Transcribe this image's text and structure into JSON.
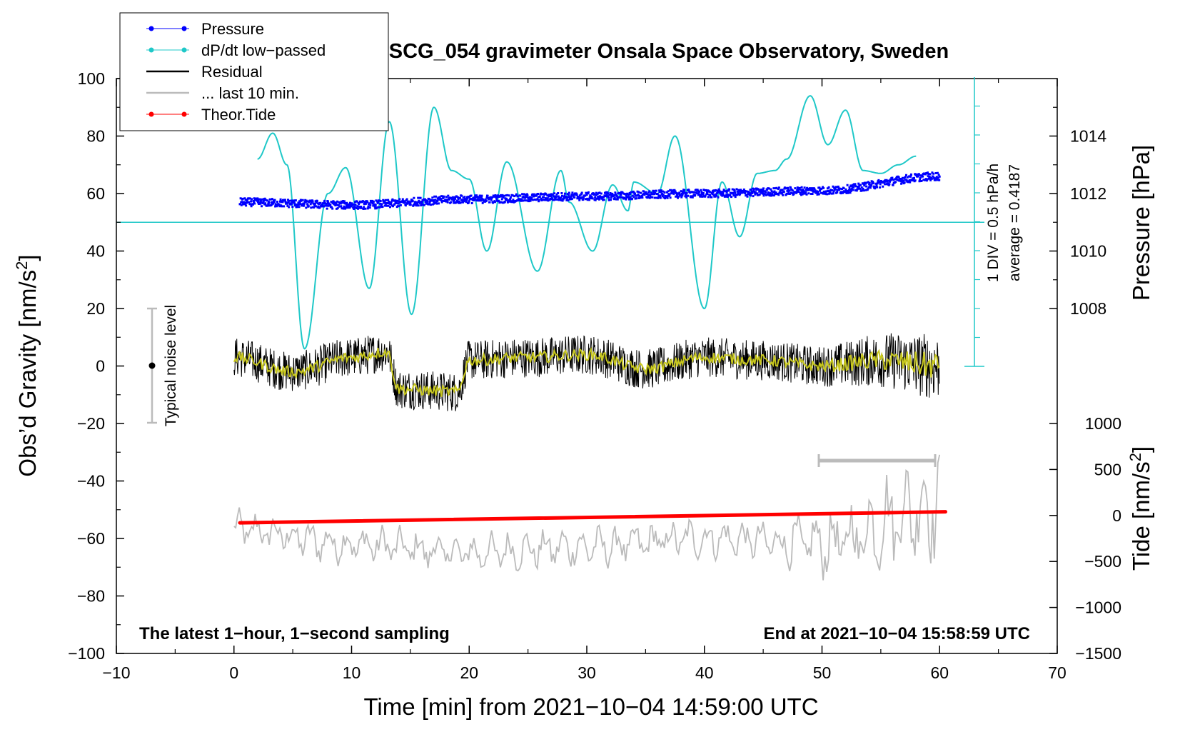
{
  "chart_data": {
    "type": "line",
    "title": "SCG_054 gravimeter Onsala Space Observatory, Sweden",
    "xlabel": "Time [min] from 2021−10−04 14:59:00 UTC",
    "ylabel_left_main": "Obs’d Gravity [nm/s",
    "ylabel_left_sup": "2",
    "ylabel_left_end": "]",
    "ylabel_right_pressure": "Pressure [hPa]",
    "ylabel_right_tide_main": "Tide [nm/s",
    "ylabel_right_tide_sup": "2",
    "ylabel_right_tide_end": "]",
    "xlim": [
      -10,
      70
    ],
    "ylim": [
      -100,
      100
    ],
    "pressure_ylim": [
      1008,
      1014
    ],
    "tide_ylim": [
      -1500,
      1000
    ],
    "x_ticks": [
      "−10",
      "0",
      "10",
      "20",
      "30",
      "40",
      "50",
      "60",
      "70"
    ],
    "y_ticks": [
      "−100",
      "−80",
      "−60",
      "−40",
      "−20",
      "0",
      "20",
      "40",
      "60",
      "80",
      "100"
    ],
    "pressure_ticks": [
      "1008",
      "1010",
      "1012",
      "1014"
    ],
    "tide_ticks": [
      "−1500",
      "−1000",
      "−500",
      "0",
      "500",
      "1000"
    ],
    "legend": [
      {
        "label": "Pressure",
        "color": "#0000ff",
        "marker": true
      },
      {
        "label": "dP/dt low−passed",
        "color": "#1fc8c8",
        "marker": true
      },
      {
        "label": "Residual",
        "color": "#000000",
        "marker": false
      },
      {
        "label": "... last 10 min.",
        "color": "#bbbbbb",
        "marker": false
      },
      {
        "label": "Theor.Tide",
        "color": "#ff0000",
        "marker": true
      }
    ],
    "annotations": {
      "bottom_left": "The latest 1−hour, 1−second sampling",
      "bottom_right": "End at 2021−10−04 15:58:59 UTC",
      "noise": "Typical noise level",
      "dpdt_scale": "1 DIV = 0.5 hPa/h",
      "dpdt_average": "average = 0.4187"
    },
    "series": [
      {
        "name": "Pressure",
        "unit": "hPa",
        "x": [
          0.5,
          10,
          20,
          30,
          40,
          50,
          60
        ],
        "y": [
          1011.7,
          1011.6,
          1011.8,
          1011.9,
          1012.0,
          1012.1,
          1012.6
        ]
      },
      {
        "name": "dP/dt low−passed",
        "unit": "nm/s² axis units",
        "x": [
          2,
          3.3,
          4.5,
          6,
          8,
          9.5,
          11.5,
          13.2,
          15.1,
          17,
          18.5,
          20,
          21.5,
          23.2,
          25.8,
          27.8,
          28.5,
          30.5,
          32.2,
          33.5,
          34,
          36,
          37.5,
          40,
          41.5,
          43,
          44.5,
          46,
          47,
          49,
          50.5,
          52,
          53.5,
          55,
          56.5,
          58
        ],
        "y": [
          72,
          81,
          70,
          6,
          60,
          69,
          27,
          85,
          18,
          90,
          68,
          65,
          40,
          71,
          33,
          68,
          57,
          40,
          63,
          54,
          64,
          60,
          80,
          20,
          64,
          45,
          67,
          68,
          72,
          94,
          77,
          89,
          68,
          67,
          70,
          73
        ]
      },
      {
        "name": "Residual",
        "unit": "nm/s²",
        "x": [
          0,
          5,
          10,
          13,
          14,
          19,
          20,
          25,
          30,
          35,
          40,
          45,
          50,
          55,
          60
        ],
        "y": [
          3,
          -2,
          3,
          5,
          -8,
          -9,
          2,
          3,
          4,
          -1,
          3,
          2,
          0,
          2,
          0
        ]
      },
      {
        "name": "... last 10 min.",
        "unit": "nm/s²",
        "x": [
          0,
          10,
          20,
          30,
          40,
          50,
          60
        ],
        "y": [
          -57,
          -62,
          -65,
          -63,
          -60,
          -62,
          -48
        ]
      },
      {
        "name": "Theor.Tide",
        "unit": "nm/s² (tide axis)",
        "x": [
          0.5,
          60.5
        ],
        "y": [
          -80,
          40
        ]
      }
    ]
  }
}
